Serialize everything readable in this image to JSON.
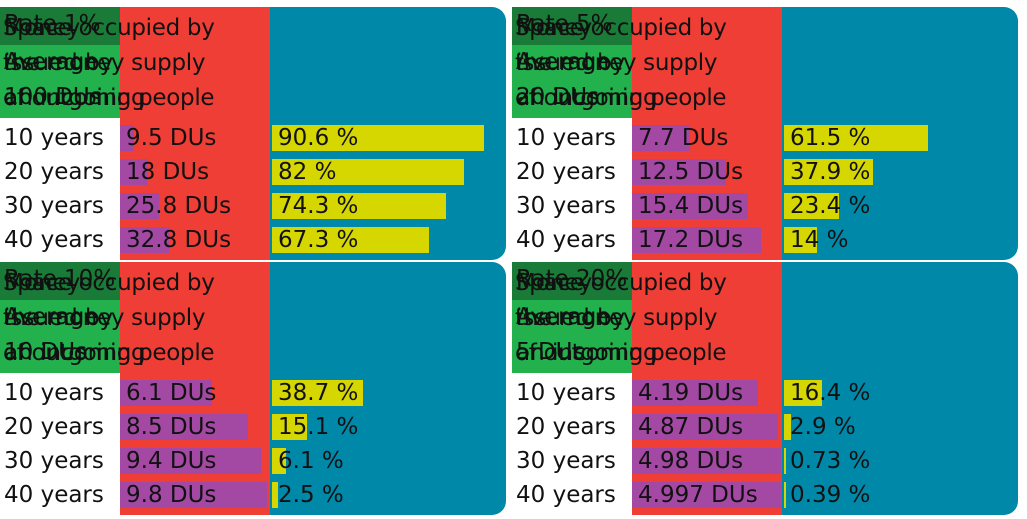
{
  "chart_data": [
    {
      "type": "bar",
      "rate_label": "Rate 1%",
      "average_line1": "Average",
      "average_line2": "100 DUs",
      "money_header": [
        "Money",
        "issued by",
        "an incoming"
      ],
      "space_header": [
        "Space occupied by",
        "the money supply",
        "of outgoing people"
      ],
      "categories": [
        "10 years",
        "20 years",
        "30 years",
        "40 years"
      ],
      "money_values": [
        9.5,
        18,
        25.8,
        32.8
      ],
      "money_labels": [
        "9.5 DUs",
        "18 DUs",
        "25.8 DUs",
        "32.8 DUs"
      ],
      "space_values": [
        90.6,
        82,
        74.3,
        67.3
      ],
      "space_labels": [
        "90.6 %",
        "82 %",
        "74.3 %",
        "67.3 %"
      ],
      "money_max": 100,
      "space_max": 100
    },
    {
      "type": "bar",
      "rate_label": "Rate 5%",
      "average_line1": "Average",
      "average_line2": "20 DUs",
      "money_header": [
        "Money",
        "issued by",
        "an incoming"
      ],
      "space_header": [
        "Space occupied by",
        "the money supply",
        "of outgoing people"
      ],
      "categories": [
        "10 years",
        "20 years",
        "30 years",
        "40 years"
      ],
      "money_values": [
        7.7,
        12.5,
        15.4,
        17.2
      ],
      "money_labels": [
        "7.7 DUs",
        "12.5 DUs",
        "15.4 DUs",
        "17.2 DUs"
      ],
      "space_values": [
        61.5,
        37.9,
        23.4,
        14
      ],
      "space_labels": [
        "61.5 %",
        "37.9 %",
        "23.4 %",
        "14 %"
      ],
      "money_max": 20,
      "space_max": 100
    },
    {
      "type": "bar",
      "rate_label": "Rate 10%",
      "average_line1": "Average",
      "average_line2": "10 DUs",
      "money_header": [
        "Money",
        "issued by",
        "an incoming"
      ],
      "space_header": [
        "Space occupied by",
        "the money supply",
        "of outgoing people"
      ],
      "categories": [
        "10 years",
        "20 years",
        "30 years",
        "40 years"
      ],
      "money_values": [
        6.1,
        8.5,
        9.4,
        9.8
      ],
      "money_labels": [
        "6.1 DUs",
        "8.5 DUs",
        "9.4 DUs",
        "9.8 DUs"
      ],
      "space_values": [
        38.7,
        15.1,
        6.1,
        2.5
      ],
      "space_labels": [
        "38.7 %",
        "15.1 %",
        "6.1 %",
        "2.5 %"
      ],
      "money_max": 10,
      "space_max": 100
    },
    {
      "type": "bar",
      "rate_label": "Rate 20%",
      "average_line1": "Average",
      "average_line2": "5 DUs",
      "money_header": [
        "Money",
        "issued by",
        "an incoming"
      ],
      "space_header": [
        "Space occupied by",
        "the money supply",
        "of outgoing people"
      ],
      "categories": [
        "10 years",
        "20 years",
        "30 years",
        "40 years"
      ],
      "money_values": [
        4.19,
        4.87,
        4.98,
        4.997
      ],
      "money_labels": [
        "4.19 DUs",
        "4.87 DUs",
        "4.98 DUs",
        "4.997 DUs"
      ],
      "space_values": [
        16.4,
        2.9,
        0.73,
        0.39
      ],
      "space_labels": [
        "16.4 %",
        "2.9 %",
        "0.73 %",
        "0.39 %"
      ],
      "money_max": 5,
      "space_max": 100
    }
  ],
  "colors": {
    "rate_header": "#1a7a37",
    "average_header": "#22b14c",
    "money_column": "#ef3e36",
    "space_column": "#0088a9",
    "money_bar": "#a349a4",
    "space_bar": "#d6d600"
  }
}
